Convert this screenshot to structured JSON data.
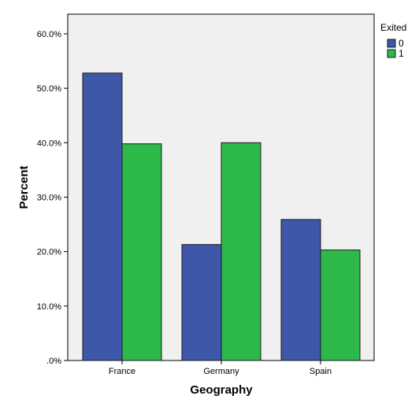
{
  "colors": {
    "plot_background": "#f0f0f0",
    "series_0": "#3f57a8",
    "series_1": "#2db84a",
    "bar_outline": "#1a1a1a"
  },
  "chart_data": {
    "type": "bar",
    "xlabel": "Geography",
    "ylabel": "Percent",
    "categories": [
      "France",
      "Germany",
      "Spain"
    ],
    "ylim": [
      0,
      60
    ],
    "yticks": [
      0,
      10,
      20,
      30,
      40,
      50,
      60
    ],
    "ytick_labels": [
      ".0%",
      "10.0%",
      "20.0%",
      "30.0%",
      "40.0%",
      "50.0%",
      "60.0%"
    ],
    "legend": {
      "title": "Exited",
      "placement": "right"
    },
    "grid": false,
    "series": [
      {
        "name": "0",
        "color": "#3f57a8",
        "values": [
          52.8,
          21.3,
          25.9
        ]
      },
      {
        "name": "1",
        "color": "#2db84a",
        "values": [
          39.8,
          40.0,
          20.3
        ]
      }
    ]
  }
}
